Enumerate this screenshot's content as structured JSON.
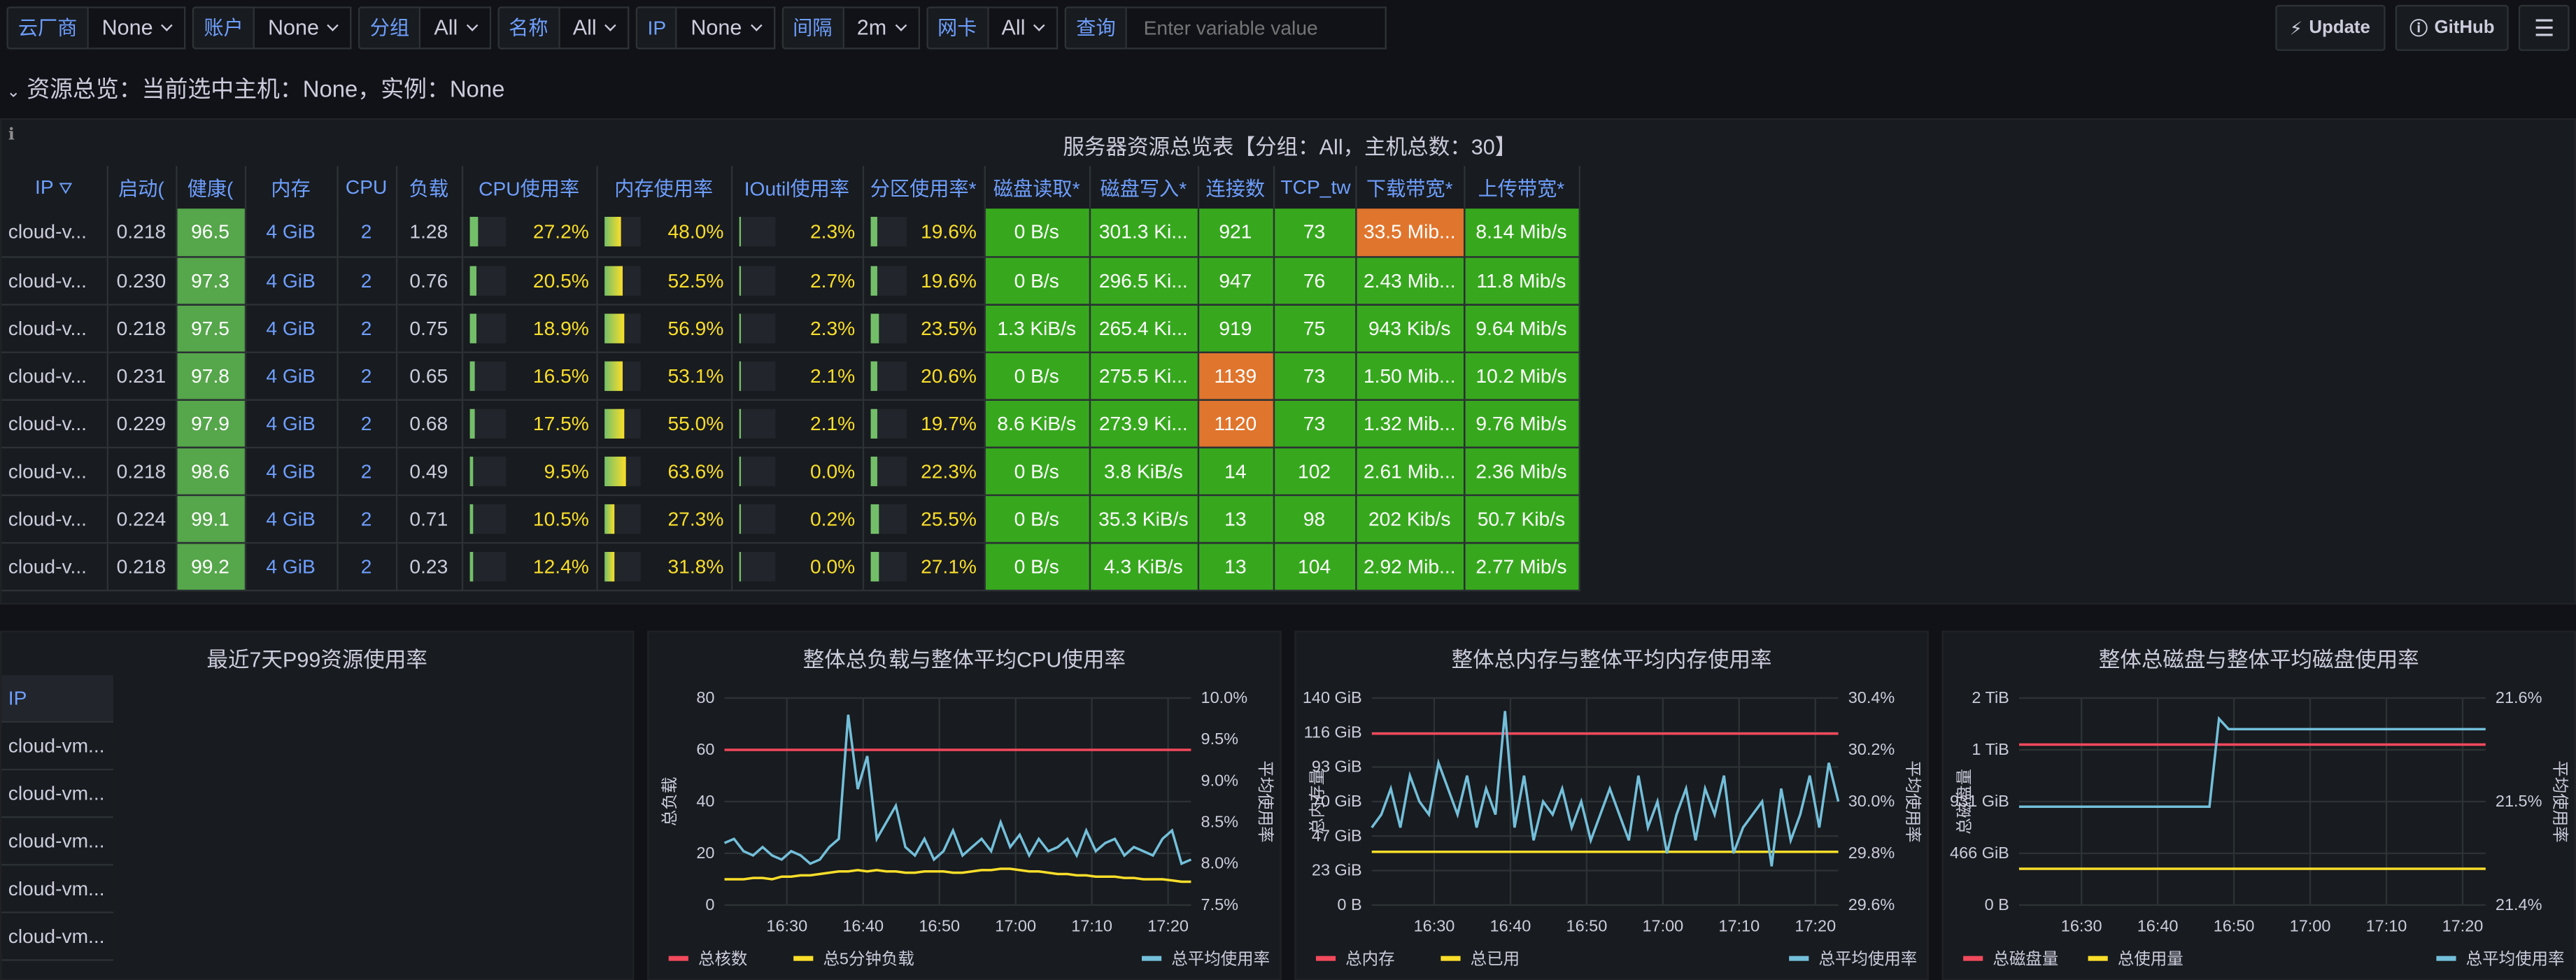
{
  "toolbar": {
    "vars": [
      {
        "label": "云厂商",
        "value": "None"
      },
      {
        "label": "账户",
        "value": "None"
      },
      {
        "label": "分组",
        "value": "All"
      },
      {
        "label": "名称",
        "value": "All"
      },
      {
        "label": "IP",
        "value": "None"
      },
      {
        "label": "间隔",
        "value": "2m"
      },
      {
        "label": "网卡",
        "value": "All"
      }
    ],
    "query_label": "查询",
    "query_placeholder": "Enter variable value",
    "update_label": "Update",
    "github_label": "GitHub"
  },
  "row_title": "资源总览：当前选中主机：None，实例：None",
  "table_panel": {
    "title": "服务器资源总览表【分组：All，主机总数：30】",
    "columns": [
      "IP",
      "启动(",
      "健康(",
      "内存",
      "CPU",
      "负载",
      "CPU使用率",
      "内存使用率",
      "IOutil使用率",
      "分区使用率*",
      "磁盘读取*",
      "磁盘写入*",
      "连接数",
      "TCP_tw",
      "下载带宽*",
      "上传带宽*"
    ],
    "rows": [
      {
        "ip": "cloud-v...",
        "start": "0.218",
        "health": "96.5",
        "mem": "4 GiB",
        "cpu": "2",
        "load": "1.28",
        "cpu_pct": "27.2%",
        "cpu_f": 0.272,
        "mem_pct": "48.0%",
        "mem_f": 0.48,
        "io_pct": "2.3%",
        "io_f": 0.023,
        "part_pct": "19.6%",
        "part_f": 0.196,
        "dread": "0 B/s",
        "dwrite": "301.3 Ki...",
        "conn": "921",
        "tcptw": "73",
        "down": "33.5 Mib...",
        "up": "8.14 Mib/s"
      },
      {
        "ip": "cloud-v...",
        "start": "0.230",
        "health": "97.3",
        "mem": "4 GiB",
        "cpu": "2",
        "load": "0.76",
        "cpu_pct": "20.5%",
        "cpu_f": 0.205,
        "mem_pct": "52.5%",
        "mem_f": 0.525,
        "io_pct": "2.7%",
        "io_f": 0.027,
        "part_pct": "19.6%",
        "part_f": 0.196,
        "dread": "0 B/s",
        "dwrite": "296.5 Ki...",
        "conn": "947",
        "tcptw": "76",
        "down": "2.43 Mib...",
        "up": "11.8 Mib/s"
      },
      {
        "ip": "cloud-v...",
        "start": "0.218",
        "health": "97.5",
        "mem": "4 GiB",
        "cpu": "2",
        "load": "0.75",
        "cpu_pct": "18.9%",
        "cpu_f": 0.189,
        "mem_pct": "56.9%",
        "mem_f": 0.569,
        "io_pct": "2.3%",
        "io_f": 0.023,
        "part_pct": "23.5%",
        "part_f": 0.235,
        "dread": "1.3 KiB/s",
        "dwrite": "265.4 Ki...",
        "conn": "919",
        "tcptw": "75",
        "down": "943 Kib/s",
        "up": "9.64 Mib/s"
      },
      {
        "ip": "cloud-v...",
        "start": "0.231",
        "health": "97.8",
        "mem": "4 GiB",
        "cpu": "2",
        "load": "0.65",
        "cpu_pct": "16.5%",
        "cpu_f": 0.165,
        "mem_pct": "53.1%",
        "mem_f": 0.531,
        "io_pct": "2.1%",
        "io_f": 0.021,
        "part_pct": "20.6%",
        "part_f": 0.206,
        "dread": "0 B/s",
        "dwrite": "275.5 Ki...",
        "conn": "1139",
        "tcptw": "73",
        "down": "1.50 Mib...",
        "up": "10.2 Mib/s"
      },
      {
        "ip": "cloud-v...",
        "start": "0.229",
        "health": "97.9",
        "mem": "4 GiB",
        "cpu": "2",
        "load": "0.68",
        "cpu_pct": "17.5%",
        "cpu_f": 0.175,
        "mem_pct": "55.0%",
        "mem_f": 0.55,
        "io_pct": "2.1%",
        "io_f": 0.021,
        "part_pct": "19.7%",
        "part_f": 0.197,
        "dread": "8.6 KiB/s",
        "dwrite": "273.9 Ki...",
        "conn": "1120",
        "tcptw": "73",
        "down": "1.32 Mib...",
        "up": "9.76 Mib/s"
      },
      {
        "ip": "cloud-v...",
        "start": "0.218",
        "health": "98.6",
        "mem": "4 GiB",
        "cpu": "2",
        "load": "0.49",
        "cpu_pct": "9.5%",
        "cpu_f": 0.095,
        "mem_pct": "63.6%",
        "mem_f": 0.636,
        "io_pct": "0.0%",
        "io_f": 0.0,
        "part_pct": "22.3%",
        "part_f": 0.223,
        "dread": "0 B/s",
        "dwrite": "3.8 KiB/s",
        "conn": "14",
        "tcptw": "102",
        "down": "2.61 Mib...",
        "up": "2.36 Mib/s"
      },
      {
        "ip": "cloud-v...",
        "start": "0.224",
        "health": "99.1",
        "mem": "4 GiB",
        "cpu": "2",
        "load": "0.71",
        "cpu_pct": "10.5%",
        "cpu_f": 0.105,
        "mem_pct": "27.3%",
        "mem_f": 0.273,
        "io_pct": "0.2%",
        "io_f": 0.002,
        "part_pct": "25.5%",
        "part_f": 0.255,
        "dread": "0 B/s",
        "dwrite": "35.3 KiB/s",
        "conn": "13",
        "tcptw": "98",
        "down": "202 Kib/s",
        "up": "50.7 Kib/s"
      },
      {
        "ip": "cloud-v...",
        "start": "0.218",
        "health": "99.2",
        "mem": "4 GiB",
        "cpu": "2",
        "load": "0.23",
        "cpu_pct": "12.4%",
        "cpu_f": 0.124,
        "mem_pct": "31.8%",
        "mem_f": 0.318,
        "io_pct": "0.0%",
        "io_f": 0.0,
        "part_pct": "27.1%",
        "part_f": 0.271,
        "dread": "0 B/s",
        "dwrite": "4.3 KiB/s",
        "conn": "13",
        "tcptw": "104",
        "down": "2.92 Mib...",
        "up": "2.77 Mib/s"
      }
    ]
  },
  "p99": {
    "title": "最近7天P99资源使用率",
    "header": "IP",
    "items": [
      "cloud-vm...",
      "cloud-vm...",
      "cloud-vm...",
      "cloud-vm...",
      "cloud-vm..."
    ]
  },
  "colors": {
    "red": "#f2495c",
    "yellow": "#fade2a",
    "cyan": "#73bfda"
  },
  "chart_data": [
    {
      "type": "line",
      "title": "整体总负载与整体平均CPU使用率",
      "ylabel": "总负载",
      "y2label": "平均使用率",
      "x_ticks": [
        "16:30",
        "16:40",
        "16:50",
        "17:00",
        "17:10",
        "17:20"
      ],
      "y_ticks": [
        "0",
        "20",
        "40",
        "60",
        "80"
      ],
      "y2_ticks": [
        "7.5%",
        "8.0%",
        "8.5%",
        "9.0%",
        "9.5%",
        "10.0%"
      ],
      "ylim": [
        0,
        80
      ],
      "y2lim": [
        7.5,
        10.0
      ],
      "legend": [
        "总核数",
        "总5分钟负载",
        "总平均使用率"
      ],
      "series": [
        {
          "name": "总核数",
          "axis": "left",
          "color": "#f2495c",
          "values": [
            60,
            60,
            60,
            60,
            60,
            60,
            60,
            60,
            60,
            60,
            60,
            60,
            60,
            60,
            60,
            60,
            60,
            60,
            60,
            60,
            60,
            60,
            60,
            60,
            60,
            60,
            60,
            60,
            60,
            60,
            60,
            60,
            60,
            60,
            60,
            60,
            60,
            60,
            60,
            60,
            60,
            60,
            60,
            60,
            60,
            60,
            60,
            60,
            60,
            60
          ]
        },
        {
          "name": "总5分钟负载",
          "axis": "left",
          "color": "#fade2a",
          "values": [
            10,
            10,
            10,
            10.5,
            10.5,
            10,
            11,
            11,
            11.5,
            11.5,
            12,
            12.5,
            13,
            13,
            13.5,
            13,
            13.5,
            13,
            13,
            12.5,
            12.5,
            13,
            13,
            13,
            12.5,
            12.5,
            13,
            13.5,
            13.5,
            14,
            14,
            13.5,
            13,
            13,
            12.5,
            12,
            12,
            11.5,
            11.5,
            11,
            11,
            11,
            10.5,
            10.5,
            10,
            10,
            10,
            9.5,
            9,
            9
          ]
        },
        {
          "name": "总平均使用率",
          "axis": "right",
          "color": "#73bfda",
          "values": [
            8.25,
            8.3,
            8.15,
            8.1,
            8.2,
            8.1,
            8.05,
            8.15,
            8.1,
            8.0,
            8.05,
            8.2,
            8.3,
            9.8,
            8.9,
            9.3,
            8.3,
            8.5,
            8.7,
            8.2,
            8.1,
            8.3,
            8.05,
            8.15,
            8.4,
            8.1,
            8.2,
            8.3,
            8.15,
            8.5,
            8.2,
            8.35,
            8.1,
            8.3,
            8.15,
            8.2,
            8.3,
            8.1,
            8.4,
            8.15,
            8.25,
            8.3,
            8.1,
            8.2,
            8.15,
            8.1,
            8.3,
            8.4,
            8.0,
            8.05
          ]
        }
      ]
    },
    {
      "type": "line",
      "title": "整体总内存与整体平均内存使用率",
      "ylabel": "总内存量",
      "y2label": "平均使用率",
      "x_ticks": [
        "16:30",
        "16:40",
        "16:50",
        "17:00",
        "17:10",
        "17:20"
      ],
      "y_ticks": [
        "0 B",
        "23 GiB",
        "47 GiB",
        "70 GiB",
        "93 GiB",
        "116 GiB",
        "140 GiB"
      ],
      "y2_ticks": [
        "29.6%",
        "29.8%",
        "30.0%",
        "30.2%",
        "30.4%"
      ],
      "ylim": [
        0,
        140
      ],
      "y2lim": [
        29.6,
        30.4
      ],
      "legend": [
        "总内存",
        "总已用",
        "总平均使用率"
      ],
      "series": [
        {
          "name": "总内存",
          "axis": "left",
          "color": "#f2495c",
          "values": [
            116,
            116,
            116,
            116,
            116,
            116,
            116,
            116,
            116,
            116,
            116,
            116,
            116,
            116,
            116,
            116,
            116,
            116,
            116,
            116,
            116,
            116,
            116,
            116,
            116,
            116,
            116,
            116,
            116,
            116,
            116,
            116,
            116,
            116,
            116,
            116,
            116,
            116,
            116,
            116,
            116,
            116,
            116,
            116,
            116,
            116,
            116,
            116,
            116,
            116
          ]
        },
        {
          "name": "总已用",
          "axis": "left",
          "color": "#fade2a",
          "values": [
            36,
            36,
            36,
            36,
            36,
            36,
            36,
            36,
            36,
            36,
            36,
            36,
            36,
            36,
            36,
            36,
            36,
            36,
            36,
            36,
            36,
            36,
            36,
            36,
            36,
            36,
            36,
            36,
            36,
            36,
            36,
            36,
            36,
            36,
            36,
            36,
            36,
            36,
            36,
            36,
            36,
            36,
            36,
            36,
            36,
            36,
            36,
            36,
            36,
            36
          ]
        },
        {
          "name": "总平均使用率",
          "axis": "right",
          "color": "#73bfda",
          "values": [
            29.9,
            29.95,
            30.05,
            29.9,
            30.1,
            30.0,
            29.95,
            30.15,
            30.05,
            29.95,
            30.1,
            29.9,
            30.05,
            29.95,
            30.35,
            29.9,
            30.1,
            29.85,
            30.0,
            29.95,
            30.05,
            29.9,
            30.0,
            29.85,
            29.95,
            30.05,
            29.95,
            29.85,
            30.1,
            29.9,
            30.0,
            29.8,
            29.95,
            30.05,
            29.85,
            30.05,
            29.95,
            30.1,
            29.8,
            29.9,
            29.95,
            30.0,
            29.75,
            30.05,
            29.85,
            29.95,
            30.1,
            29.9,
            30.15,
            30.0
          ]
        }
      ]
    },
    {
      "type": "line",
      "title": "整体总磁盘与整体平均磁盘使用率",
      "ylabel": "总磁盘量",
      "y2label": "平均使用率",
      "x_ticks": [
        "16:30",
        "16:40",
        "16:50",
        "17:00",
        "17:10",
        "17:20"
      ],
      "y_ticks": [
        "0 B",
        "466 GiB",
        "931 GiB",
        "1 TiB",
        "2 TiB"
      ],
      "y2_ticks": [
        "21.4%",
        "21.5%",
        "21.6%"
      ],
      "ylim": [
        0,
        4
      ],
      "y2lim": [
        21.4,
        21.6
      ],
      "legend": [
        "总磁盘量",
        "总使用量",
        "总平均使用率"
      ],
      "series": [
        {
          "name": "总磁盘量",
          "axis": "left",
          "color": "#f2495c",
          "values": [
            3.1,
            3.1,
            3.1,
            3.1,
            3.1,
            3.1,
            3.1,
            3.1,
            3.1,
            3.1,
            3.1,
            3.1,
            3.1,
            3.1,
            3.1,
            3.1,
            3.1,
            3.1,
            3.1,
            3.1,
            3.1,
            3.1,
            3.1,
            3.1,
            3.1,
            3.1,
            3.1,
            3.1,
            3.1,
            3.1,
            3.1,
            3.1,
            3.1,
            3.1,
            3.1,
            3.1,
            3.1,
            3.1,
            3.1,
            3.1,
            3.1,
            3.1,
            3.1,
            3.1,
            3.1,
            3.1,
            3.1,
            3.1,
            3.1,
            3.1
          ]
        },
        {
          "name": "总使用量",
          "axis": "left",
          "color": "#fade2a",
          "values": [
            0.7,
            0.7,
            0.7,
            0.7,
            0.7,
            0.7,
            0.7,
            0.7,
            0.7,
            0.7,
            0.7,
            0.7,
            0.7,
            0.7,
            0.7,
            0.7,
            0.7,
            0.7,
            0.7,
            0.7,
            0.7,
            0.7,
            0.7,
            0.7,
            0.7,
            0.7,
            0.7,
            0.7,
            0.7,
            0.7,
            0.7,
            0.7,
            0.7,
            0.7,
            0.7,
            0.7,
            0.7,
            0.7,
            0.7,
            0.7,
            0.7,
            0.7,
            0.7,
            0.7,
            0.7,
            0.7,
            0.7,
            0.7,
            0.7,
            0.7
          ]
        },
        {
          "name": "总平均使用率",
          "axis": "right",
          "color": "#73bfda",
          "values": [
            21.495,
            21.495,
            21.495,
            21.495,
            21.495,
            21.495,
            21.495,
            21.495,
            21.495,
            21.495,
            21.495,
            21.495,
            21.495,
            21.495,
            21.495,
            21.495,
            21.495,
            21.495,
            21.495,
            21.495,
            21.495,
            21.58,
            21.57,
            21.57,
            21.57,
            21.57,
            21.57,
            21.57,
            21.57,
            21.57,
            21.57,
            21.57,
            21.57,
            21.57,
            21.57,
            21.57,
            21.57,
            21.57,
            21.57,
            21.57,
            21.57,
            21.57,
            21.57,
            21.57,
            21.57,
            21.57,
            21.57,
            21.57,
            21.57,
            21.57
          ]
        }
      ]
    }
  ]
}
